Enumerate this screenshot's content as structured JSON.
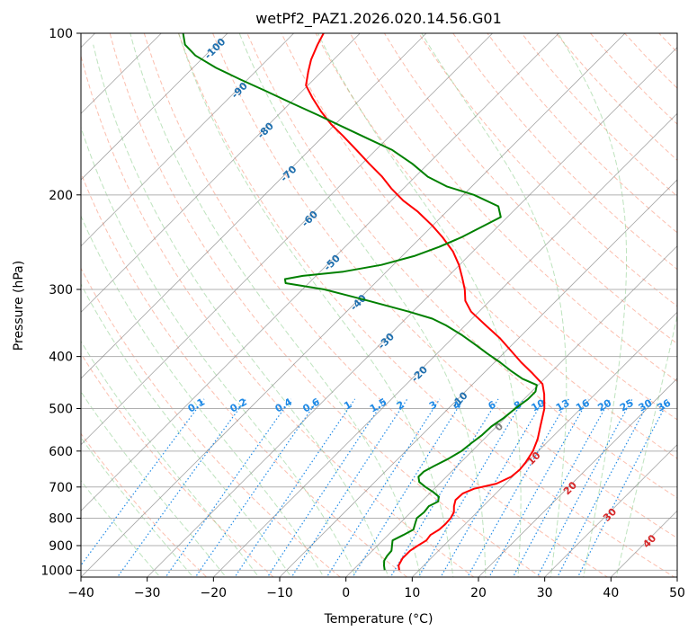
{
  "chart_data": {
    "type": "line",
    "subtype": "skew-T log-P diagram",
    "title": "wetPf2_PAZ1.2026.020.14.56.G01",
    "xlabel": "Temperature (°C)",
    "ylabel": "Pressure (hPa)",
    "xlim": [
      -40,
      50
    ],
    "ylim": [
      1030,
      100
    ],
    "yscale": "log",
    "x_ticks": [
      "−40",
      "−30",
      "−20",
      "−10",
      "0",
      "10",
      "20",
      "30",
      "40",
      "50"
    ],
    "y_ticks": [
      "100",
      "200",
      "300",
      "400",
      "500",
      "600",
      "700",
      "800",
      "900",
      "1000"
    ],
    "grid": true,
    "series": [
      {
        "id": "temperature",
        "color": "#ff0000",
        "points": [
          {
            "p": 1000,
            "t": 7.0
          },
          {
            "p": 980,
            "t": 6.2
          },
          {
            "p": 950,
            "t": 5.7
          },
          {
            "p": 920,
            "t": 5.7
          },
          {
            "p": 900,
            "t": 6.1
          },
          {
            "p": 880,
            "t": 6.6
          },
          {
            "p": 860,
            "t": 6.4
          },
          {
            "p": 840,
            "t": 6.9
          },
          {
            "p": 820,
            "t": 7.0
          },
          {
            "p": 800,
            "t": 6.9
          },
          {
            "p": 780,
            "t": 6.5
          },
          {
            "p": 760,
            "t": 5.6
          },
          {
            "p": 740,
            "t": 4.9
          },
          {
            "p": 720,
            "t": 5.0
          },
          {
            "p": 705,
            "t": 6.0
          },
          {
            "p": 690,
            "t": 8.6
          },
          {
            "p": 670,
            "t": 9.8
          },
          {
            "p": 650,
            "t": 10.0
          },
          {
            "p": 630,
            "t": 9.8
          },
          {
            "p": 600,
            "t": 9.2
          },
          {
            "p": 570,
            "t": 8.1
          },
          {
            "p": 540,
            "t": 6.6
          },
          {
            "p": 500,
            "t": 4.5
          },
          {
            "p": 470,
            "t": 2.3
          },
          {
            "p": 450,
            "t": 0.5
          },
          {
            "p": 430,
            "t": -2.6
          },
          {
            "p": 410,
            "t": -6.0
          },
          {
            "p": 390,
            "t": -9.3
          },
          {
            "p": 370,
            "t": -12.8
          },
          {
            "p": 350,
            "t": -16.9
          },
          {
            "p": 330,
            "t": -21.2
          },
          {
            "p": 315,
            "t": -23.7
          },
          {
            "p": 300,
            "t": -25.5
          },
          {
            "p": 285,
            "t": -27.7
          },
          {
            "p": 270,
            "t": -30.1
          },
          {
            "p": 255,
            "t": -33.0
          },
          {
            "p": 240,
            "t": -36.7
          },
          {
            "p": 228,
            "t": -40.1
          },
          {
            "p": 215,
            "t": -44.3
          },
          {
            "p": 205,
            "t": -48.2
          },
          {
            "p": 195,
            "t": -51.7
          },
          {
            "p": 185,
            "t": -55.0
          },
          {
            "p": 175,
            "t": -58.9
          },
          {
            "p": 165,
            "t": -62.9
          },
          {
            "p": 155,
            "t": -67.2
          },
          {
            "p": 148,
            "t": -70.5
          },
          {
            "p": 140,
            "t": -74.0
          },
          {
            "p": 132,
            "t": -77.4
          },
          {
            "p": 125,
            "t": -80.3
          },
          {
            "p": 118,
            "t": -82.0
          },
          {
            "p": 112,
            "t": -83.4
          },
          {
            "p": 105,
            "t": -84.7
          },
          {
            "p": 100,
            "t": -85.5
          }
        ]
      },
      {
        "id": "dewpoint",
        "color": "#008000",
        "points": [
          {
            "p": 1000,
            "t": 4.8
          },
          {
            "p": 980,
            "t": 4.0
          },
          {
            "p": 960,
            "t": 3.3
          },
          {
            "p": 940,
            "t": 3.0
          },
          {
            "p": 920,
            "t": 2.9
          },
          {
            "p": 900,
            "t": 2.2
          },
          {
            "p": 880,
            "t": 1.5
          },
          {
            "p": 860,
            "t": 2.3
          },
          {
            "p": 840,
            "t": 3.0
          },
          {
            "p": 820,
            "t": 2.4
          },
          {
            "p": 800,
            "t": 1.8
          },
          {
            "p": 780,
            "t": 2.0
          },
          {
            "p": 760,
            "t": 1.8
          },
          {
            "p": 745,
            "t": 2.5
          },
          {
            "p": 730,
            "t": 1.9
          },
          {
            "p": 715,
            "t": 0.3
          },
          {
            "p": 700,
            "t": -1.6
          },
          {
            "p": 685,
            "t": -3.3
          },
          {
            "p": 670,
            "t": -4.2
          },
          {
            "p": 655,
            "t": -4.2
          },
          {
            "p": 640,
            "t": -3.5
          },
          {
            "p": 620,
            "t": -2.4
          },
          {
            "p": 600,
            "t": -1.6
          },
          {
            "p": 580,
            "t": -1.3
          },
          {
            "p": 560,
            "t": -0.9
          },
          {
            "p": 540,
            "t": -0.8
          },
          {
            "p": 520,
            "t": -0.2
          },
          {
            "p": 500,
            "t": 0.1
          },
          {
            "p": 480,
            "t": 0.6
          },
          {
            "p": 465,
            "t": 0.6
          },
          {
            "p": 452,
            "t": -0.2
          },
          {
            "p": 440,
            "t": -3.3
          },
          {
            "p": 425,
            "t": -6.3
          },
          {
            "p": 410,
            "t": -9.2
          },
          {
            "p": 395,
            "t": -12.4
          },
          {
            "p": 380,
            "t": -15.6
          },
          {
            "p": 365,
            "t": -19.0
          },
          {
            "p": 350,
            "t": -22.9
          },
          {
            "p": 340,
            "t": -26.0
          },
          {
            "p": 330,
            "t": -30.6
          },
          {
            "p": 315,
            "t": -38.3
          },
          {
            "p": 300,
            "t": -46.7
          },
          {
            "p": 292,
            "t": -53.5
          },
          {
            "p": 287,
            "t": -54.2
          },
          {
            "p": 283,
            "t": -52.0
          },
          {
            "p": 278,
            "t": -46.5
          },
          {
            "p": 270,
            "t": -41.8
          },
          {
            "p": 260,
            "t": -38.2
          },
          {
            "p": 250,
            "t": -35.8
          },
          {
            "p": 240,
            "t": -33.9
          },
          {
            "p": 230,
            "t": -32.5
          },
          {
            "p": 220,
            "t": -31.0
          },
          {
            "p": 210,
            "t": -33.0
          },
          {
            "p": 200,
            "t": -38.4
          },
          {
            "p": 193,
            "t": -43.7
          },
          {
            "p": 185,
            "t": -48.1
          },
          {
            "p": 175,
            "t": -52.4
          },
          {
            "p": 165,
            "t": -57.5
          },
          {
            "p": 158,
            "t": -62.3
          },
          {
            "p": 150,
            "t": -68.0
          },
          {
            "p": 142,
            "t": -74.0
          },
          {
            "p": 135,
            "t": -79.7
          },
          {
            "p": 128,
            "t": -85.6
          },
          {
            "p": 122,
            "t": -91.0
          },
          {
            "p": 116,
            "t": -96.5
          },
          {
            "p": 110,
            "t": -101.5
          },
          {
            "p": 105,
            "t": -104.7
          },
          {
            "p": 100,
            "t": -106.7
          }
        ]
      }
    ],
    "isotherm_labels": [
      "-100",
      "-90",
      "-80",
      "-70",
      "-60",
      "-50",
      "-40",
      "-30",
      "-20",
      "-10",
      "0",
      "10",
      "20",
      "30",
      "40"
    ],
    "mixing_ratio_labels": [
      "0.1",
      "0.2",
      "0.4",
      "0.6",
      "1",
      "1.5",
      "2",
      "3",
      "4",
      "6",
      "8",
      "10",
      "13",
      "16",
      "20",
      "25",
      "30",
      "36"
    ],
    "colors": {
      "dry_adiabat": "#fa8060",
      "moist_adiabat": "#6fc26f",
      "mixing_ratio": "#1f8ae6",
      "isotherm": "#808080",
      "isotherm_label_cold": "#1f6fae",
      "isotherm_label_zero": "#808080",
      "isotherm_label_warm": "#d62728",
      "grid": "#b0b0b0"
    }
  }
}
